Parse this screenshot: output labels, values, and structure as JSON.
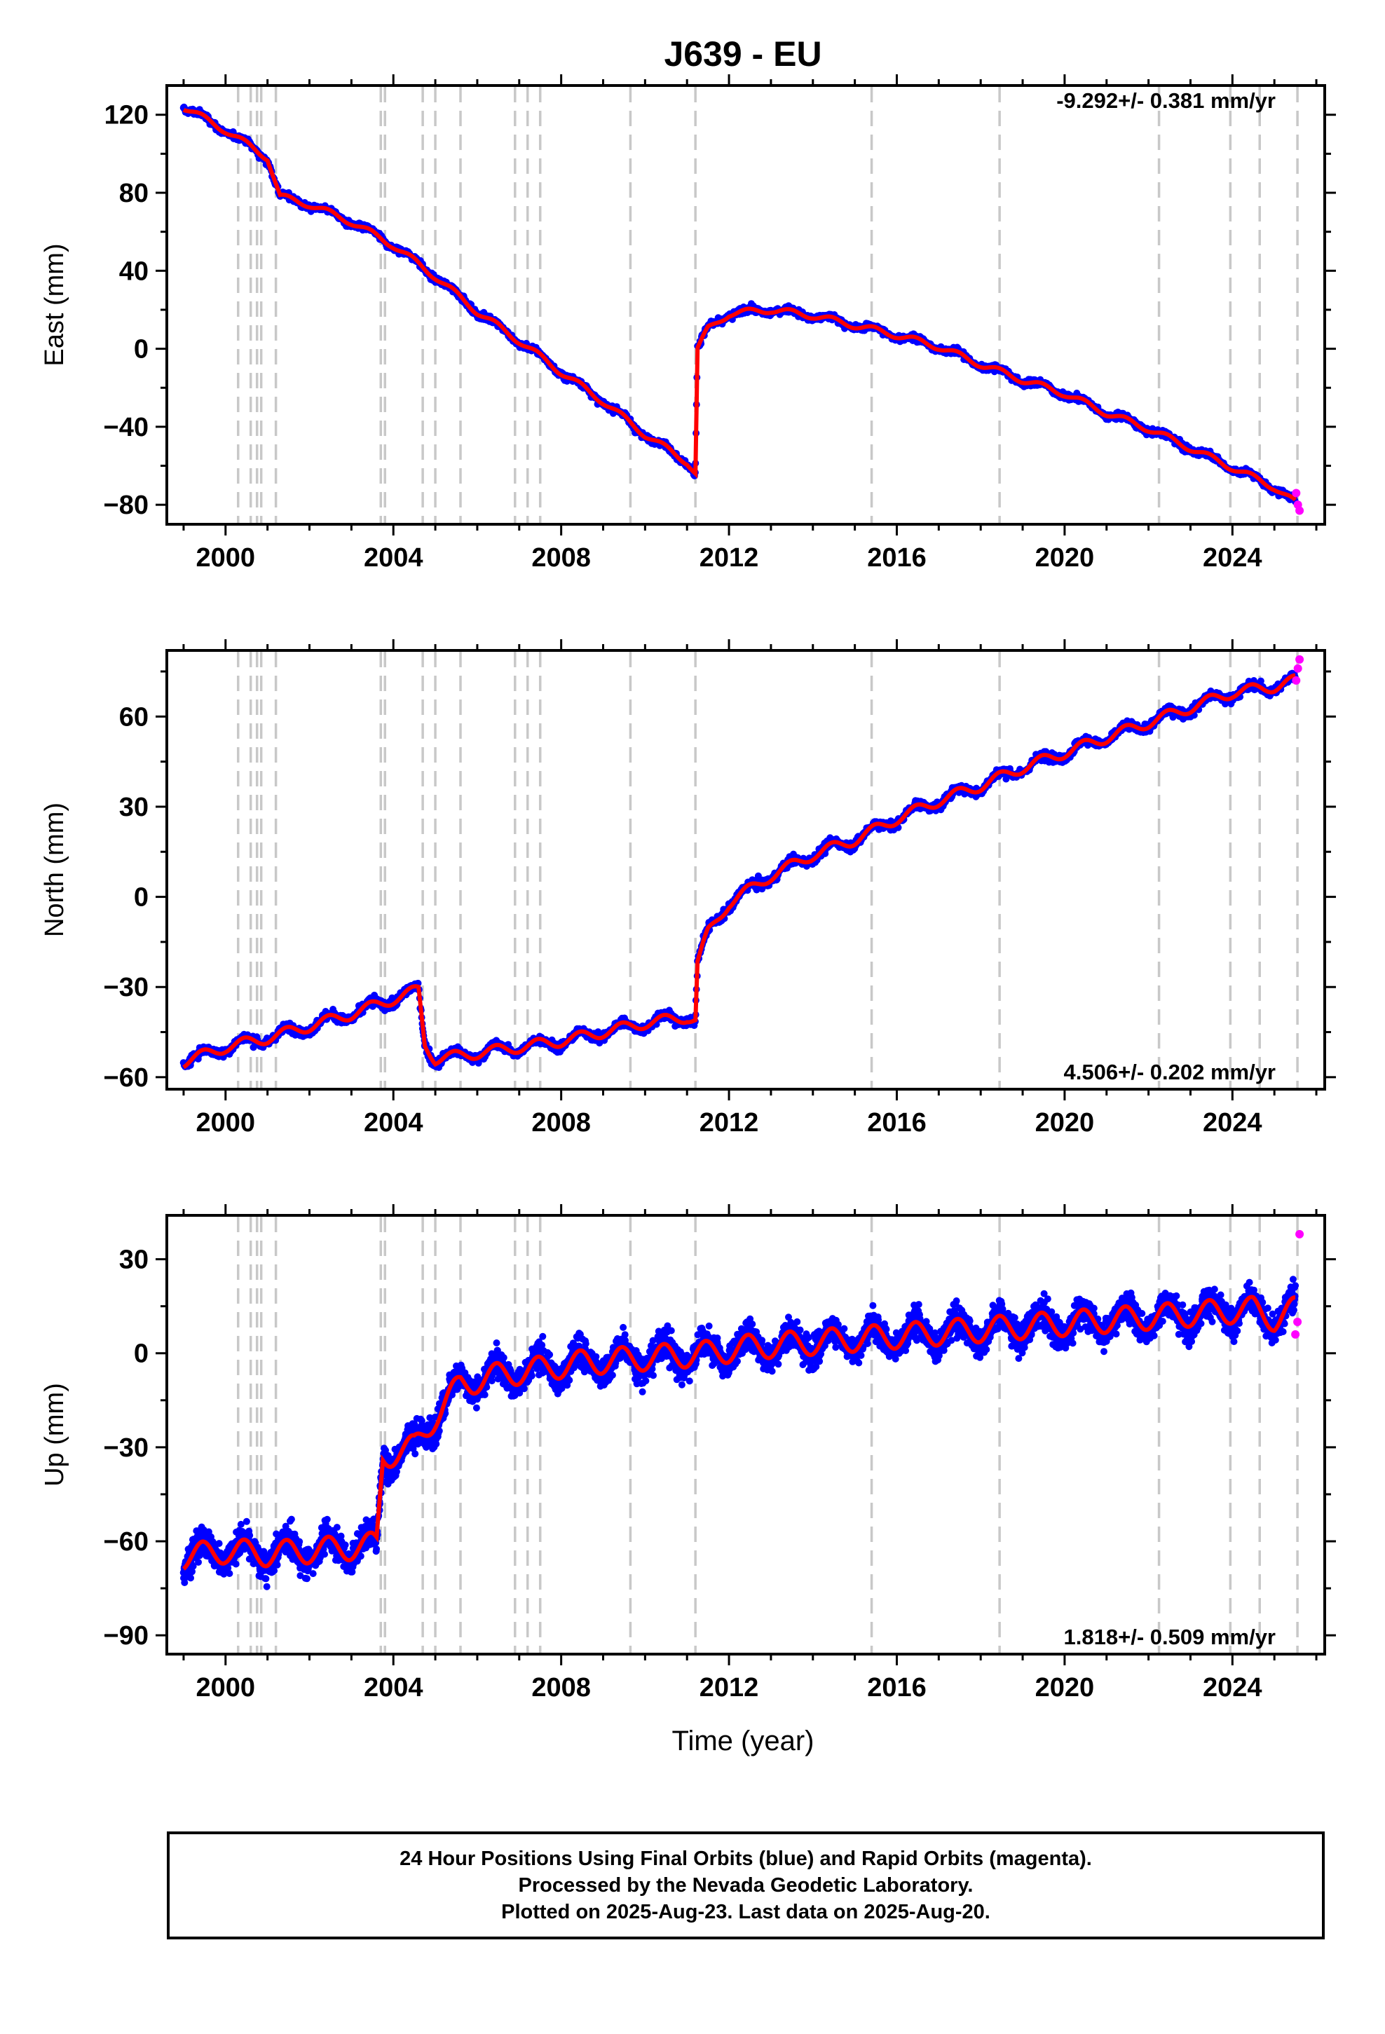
{
  "title": "J639 - EU",
  "xlabel": "Time (year)",
  "colors": {
    "final_orbits": "#0000ff",
    "rapid_orbits": "#ff00ff",
    "model": "#ff0000",
    "event_lines": "#c8c8c8"
  },
  "chart_data": [
    {
      "type": "scatter",
      "panel": "east",
      "ylabel": "East (mm)",
      "rate_annotation": "-9.292+/- 0.381 mm/yr",
      "xlim": [
        1998.6,
        2026.2
      ],
      "ylim": [
        -90,
        135
      ],
      "x_ticks": [
        2000,
        2004,
        2008,
        2012,
        2016,
        2020,
        2024
      ],
      "y_ticks": [
        120,
        80,
        40,
        0,
        -40,
        -80
      ],
      "series": [
        {
          "name": "Final Orbits",
          "color": "#0000ff",
          "x": [
            1999.0,
            2000.0,
            2001.0,
            2001.3,
            2002.0,
            2003.0,
            2004.0,
            2005.0,
            2006.0,
            2007.0,
            2008.0,
            2009.0,
            2010.0,
            2011.0,
            2011.2,
            2011.25,
            2011.5,
            2012.0,
            2013.0,
            2014.0,
            2015.0,
            2016.0,
            2017.0,
            2018.0,
            2019.0,
            2020.0,
            2021.0,
            2022.0,
            2023.0,
            2024.0,
            2025.0,
            2025.5
          ],
          "y": [
            124,
            112,
            98,
            78,
            74,
            65,
            53,
            37,
            19,
            4,
            -12,
            -27,
            -44,
            -58,
            -64,
            0,
            10,
            18,
            20,
            17,
            12,
            7,
            1,
            -8,
            -16,
            -23,
            -33,
            -41,
            -51,
            -61,
            -71,
            -79
          ]
        },
        {
          "name": "Rapid Orbits",
          "color": "#ff00ff",
          "x": [
            2025.52,
            2025.56,
            2025.6
          ],
          "y": [
            -74,
            -80,
            -83
          ]
        }
      ],
      "model_color": "#ff0000",
      "event_lines": [
        2000.3,
        2000.6,
        2000.75,
        2000.85,
        2001.2,
        2003.7,
        2003.8,
        2004.7,
        2005.0,
        2005.6,
        2006.9,
        2007.2,
        2007.5,
        2009.65,
        2011.2,
        2015.4,
        2018.45,
        2022.25,
        2023.95,
        2024.65,
        2025.55
      ]
    },
    {
      "type": "scatter",
      "panel": "north",
      "ylabel": "North (mm)",
      "rate_annotation": "4.506+/- 0.202 mm/yr",
      "xlim": [
        1998.6,
        2026.2
      ],
      "ylim": [
        -64,
        82
      ],
      "x_ticks": [
        2000,
        2004,
        2008,
        2012,
        2016,
        2020,
        2024
      ],
      "y_ticks": [
        60,
        30,
        0,
        -30,
        -60
      ],
      "series": [
        {
          "name": "Final Orbits",
          "color": "#0000ff",
          "x": [
            1999.0,
            2000.0,
            2001.0,
            2002.0,
            2003.0,
            2003.8,
            2004.6,
            2004.75,
            2005.0,
            2006.0,
            2007.0,
            2008.0,
            2009.0,
            2010.0,
            2011.0,
            2011.2,
            2011.25,
            2011.5,
            2012.0,
            2013.0,
            2014.0,
            2015.0,
            2016.0,
            2017.0,
            2018.0,
            2019.0,
            2020.0,
            2021.0,
            2022.0,
            2023.0,
            2024.0,
            2025.0,
            2025.5
          ],
          "y": [
            -55,
            -50,
            -47,
            -43,
            -39,
            -35,
            -31,
            -49,
            -54,
            -52,
            -50,
            -48,
            -45,
            -42,
            -40,
            -41,
            -22,
            -12,
            -2,
            7,
            14,
            19,
            26,
            32,
            37,
            43,
            48,
            53,
            58,
            63,
            68,
            70,
            72
          ]
        },
        {
          "name": "Rapid Orbits",
          "color": "#ff00ff",
          "x": [
            2025.52,
            2025.56,
            2025.6
          ],
          "y": [
            72,
            76,
            79
          ]
        }
      ],
      "model_color": "#ff0000",
      "event_lines": [
        2000.3,
        2000.6,
        2000.75,
        2000.85,
        2001.2,
        2003.7,
        2003.8,
        2004.7,
        2005.0,
        2005.6,
        2006.9,
        2007.2,
        2007.5,
        2009.65,
        2011.2,
        2015.4,
        2018.45,
        2022.25,
        2023.95,
        2024.65,
        2025.55
      ]
    },
    {
      "type": "scatter",
      "panel": "up",
      "ylabel": "Up (mm)",
      "rate_annotation": "1.818+/- 0.509 mm/yr",
      "xlim": [
        1998.6,
        2026.2
      ],
      "ylim": [
        -96,
        44
      ],
      "x_ticks": [
        2000,
        2004,
        2008,
        2012,
        2016,
        2020,
        2024
      ],
      "y_ticks": [
        30,
        0,
        -30,
        -60,
        -90
      ],
      "series": [
        {
          "name": "Final Orbits",
          "color": "#0000ff",
          "x": [
            1999.0,
            2000.0,
            2001.0,
            2002.0,
            2003.0,
            2003.6,
            2003.75,
            2004.5,
            2005.0,
            2005.6,
            2006.5,
            2007.5,
            2008.5,
            2009.5,
            2010.5,
            2011.5,
            2012.5,
            2013.5,
            2014.5,
            2015.5,
            2016.5,
            2017.5,
            2018.5,
            2019.5,
            2020.5,
            2021.5,
            2022.5,
            2023.5,
            2024.5,
            2025.0,
            2025.5
          ],
          "y": [
            -65,
            -63,
            -64,
            -63,
            -62,
            -61,
            -33,
            -30,
            -20,
            -10,
            -7,
            -5,
            -3,
            -2,
            -1,
            0,
            2,
            3,
            4,
            5,
            6,
            7,
            8,
            9,
            10,
            11,
            12,
            13,
            14,
            11,
            14
          ]
        },
        {
          "name": "Rapid Orbits",
          "color": "#ff00ff",
          "x": [
            2025.5,
            2025.55,
            2025.6
          ],
          "y": [
            6,
            10,
            38
          ]
        }
      ],
      "model_color": "#ff0000",
      "event_lines": [
        2000.3,
        2000.6,
        2000.75,
        2000.85,
        2001.2,
        2003.7,
        2003.8,
        2004.7,
        2005.0,
        2005.6,
        2006.9,
        2007.2,
        2007.5,
        2009.65,
        2011.2,
        2015.4,
        2018.45,
        2022.25,
        2023.95,
        2024.65,
        2025.55
      ]
    }
  ],
  "caption": {
    "line1": "24 Hour Positions Using Final Orbits (blue) and Rapid Orbits (magenta).",
    "line2": "Processed by the Nevada Geodetic Laboratory.",
    "line3": "Plotted on 2025-Aug-23. Last data on 2025-Aug-20."
  }
}
